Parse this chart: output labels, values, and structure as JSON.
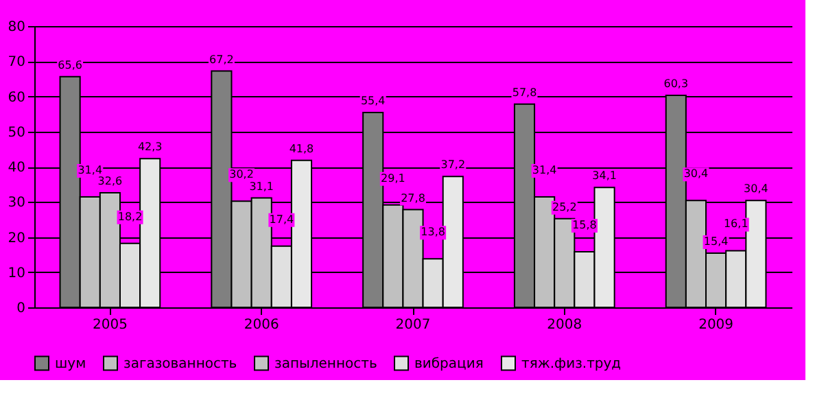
{
  "chart_data": {
    "type": "bar",
    "categories": [
      "2005",
      "2006",
      "2007",
      "2008",
      "2009"
    ],
    "series": [
      {
        "name": "шум",
        "color": "#808080",
        "values": [
          65.6,
          67.2,
          55.4,
          57.8,
          60.3
        ],
        "value_labels": [
          "65,6",
          "67,2",
          "55,4",
          "57,8",
          "60,3"
        ]
      },
      {
        "name": "загазованность",
        "color": "#c0c0c0",
        "values": [
          31.4,
          30.2,
          29.1,
          31.4,
          30.4
        ],
        "value_labels": [
          "31,4",
          "30,2",
          "29,1",
          "31,4",
          "30,4"
        ]
      },
      {
        "name": "запыленность",
        "color": "#c4c4c4",
        "values": [
          32.6,
          31.1,
          27.8,
          25.2,
          15.4
        ],
        "value_labels": [
          "32,6",
          "31,1",
          "27,8",
          "25,2",
          "15,4"
        ]
      },
      {
        "name": "вибрация",
        "color": "#e0e0e0",
        "values": [
          18.2,
          17.4,
          13.8,
          15.8,
          16.1
        ],
        "value_labels": [
          "18,2",
          "17,4",
          "13,8",
          "15,8",
          "16,1"
        ]
      },
      {
        "name": "тяж.физ.труд",
        "color": "#e8e8e8",
        "values": [
          42.3,
          41.8,
          37.2,
          34.1,
          30.4
        ],
        "value_labels": [
          "42,3",
          "41,8",
          "37,2",
          "34,1",
          "30,4"
        ]
      }
    ],
    "ylim": [
      0,
      80
    ],
    "yticks": [
      0,
      10,
      20,
      30,
      40,
      50,
      60,
      70,
      80
    ],
    "grid": "y",
    "legend": "bottom"
  }
}
